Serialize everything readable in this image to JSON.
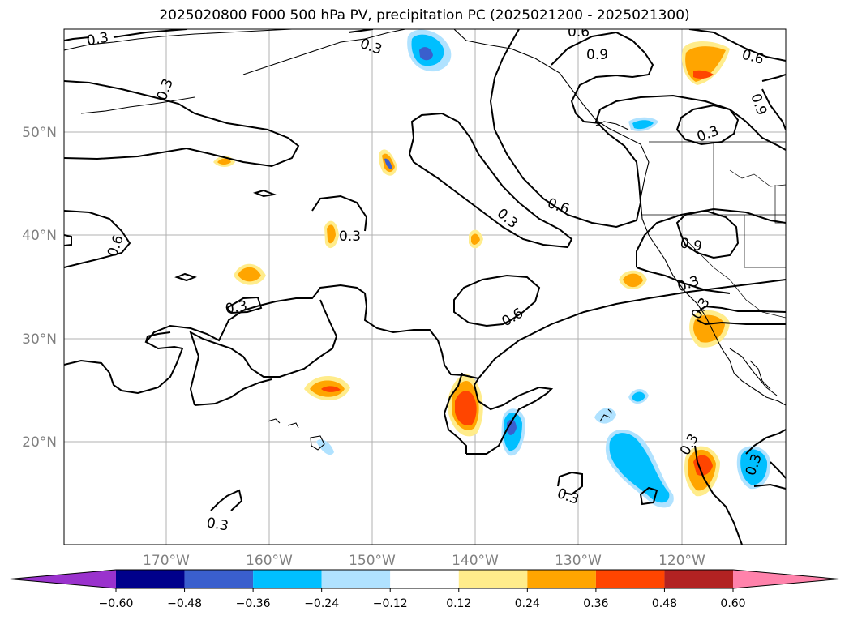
{
  "title": "2025020800 F000 500 hPa PV, precipitation PC (2025021200 - 2025021300)",
  "map": {
    "lon_labels": [
      "170°W",
      "160°W",
      "150°W",
      "140°W",
      "130°W",
      "120°W"
    ],
    "lat_labels": [
      "50°N",
      "40°N",
      "30°N",
      "20°N"
    ],
    "contour_labels": [
      "0.3",
      "0.3",
      "0.3",
      "0.6",
      "0.9",
      "0.6",
      "0.9",
      "0.3",
      "0.3",
      "0.6",
      "0.6",
      "0.3",
      "0.3",
      "0.9",
      "0.3",
      "0.3",
      "0.6",
      "0.3",
      "0.3",
      "0.3",
      "0.3"
    ],
    "colors": {
      "grid": "#b0b0b0",
      "label_gray": "#808080",
      "contour": "#000000"
    }
  },
  "colorbar": {
    "levels": [
      "-0.60",
      "-0.48",
      "-0.36",
      "-0.24",
      "-0.12",
      "0.12",
      "0.24",
      "0.36",
      "0.48",
      "0.60"
    ],
    "colors": [
      "#9a32cd",
      "#00008b",
      "#3a5fcd",
      "#00bfff",
      "#b0e2ff",
      "#ffffff",
      "#ffec8b",
      "#ffa500",
      "#ff4500",
      "#b22222",
      "#ff82ab"
    ]
  }
}
